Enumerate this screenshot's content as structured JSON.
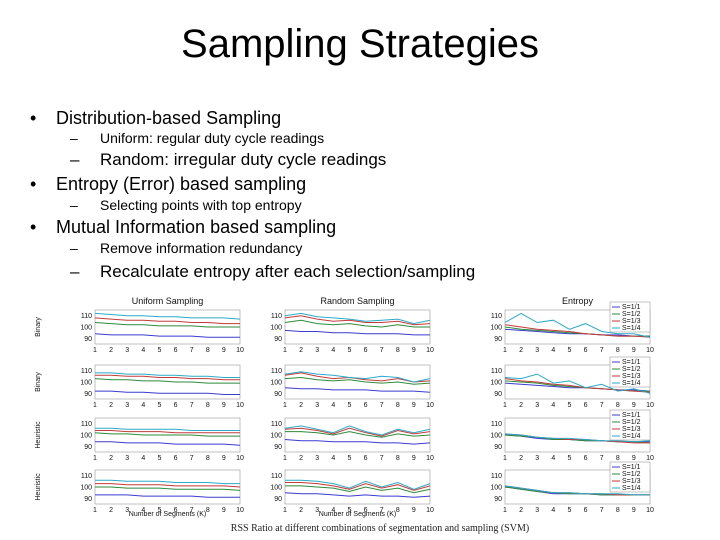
{
  "slide": {
    "title": "Sampling Strategies",
    "bullets": [
      {
        "text": "Distribution-based Sampling",
        "subs": [
          "Uniform: regular duty cycle readings",
          "Random: irregular duty cycle readings"
        ]
      },
      {
        "text": "Entropy (Error) based sampling",
        "subs": [
          "Selecting points with top entropy"
        ]
      },
      {
        "text": "Mutual Information based sampling",
        "subs": [
          "Remove information redundancy",
          "Recalculate entropy after each selection/sampling"
        ]
      }
    ]
  },
  "figure": {
    "caption": "RSS Ratio at different combinations of segmentation and sampling (SVM)",
    "column_titles": [
      "Uniform Sampling",
      "Random Sampling",
      "Entropy"
    ],
    "row_labels": [
      "Binary",
      "Binary",
      "Heuristic",
      "Heuristic"
    ],
    "xlabel": "Number of Segments (K)",
    "legend": [
      "S=1/1",
      "S=1/2",
      "S=1/3",
      "S=1/4"
    ],
    "series_colors": [
      "#3b3bd0",
      "#2e8b3b",
      "#c43a3a",
      "#2aaac8"
    ]
  },
  "chart_data": {
    "type": "line",
    "x": [
      1,
      2,
      3,
      4,
      5,
      6,
      7,
      8,
      9,
      10
    ],
    "ylim": [
      85,
      115
    ],
    "yticks": [
      90,
      100,
      110
    ],
    "panels": [
      {
        "row": "Binary",
        "col": "Uniform Sampling",
        "series": [
          {
            "name": "S=1/1",
            "values": [
              94,
              93,
              93,
              93,
              92,
              92,
              92,
              91,
              91,
              91
            ]
          },
          {
            "name": "S=1/2",
            "values": [
              104,
              103,
              102,
              102,
              101,
              101,
              101,
              100,
              100,
              100
            ]
          },
          {
            "name": "S=1/3",
            "values": [
              108,
              107,
              106,
              106,
              105,
              105,
              104,
              104,
              103,
              103
            ]
          },
          {
            "name": "S=1/4",
            "values": [
              112,
              111,
              110,
              110,
              109,
              109,
              108,
              108,
              108,
              107
            ]
          }
        ]
      },
      {
        "row": "Binary",
        "col": "Random Sampling",
        "series": [
          {
            "name": "S=1/1",
            "values": [
              97,
              96,
              96,
              95,
              95,
              94,
              94,
              94,
              93,
              93
            ]
          },
          {
            "name": "S=1/2",
            "values": [
              104,
              106,
              103,
              102,
              103,
              101,
              100,
              102,
              100,
              100
            ]
          },
          {
            "name": "S=1/3",
            "values": [
              108,
              110,
              107,
              105,
              106,
              104,
              104,
              105,
              102,
              103
            ]
          },
          {
            "name": "S=1/4",
            "values": [
              110,
              112,
              109,
              108,
              107,
              105,
              106,
              107,
              103,
              106
            ]
          }
        ]
      },
      {
        "row": "Binary",
        "col": "Entropy",
        "series": [
          {
            "name": "S=1/1",
            "values": [
              98,
              97,
              96,
              95,
              94,
              94,
              93,
              93,
              92,
              92
            ]
          },
          {
            "name": "S=1/2",
            "values": [
              100,
              98,
              97,
              96,
              95,
              94,
              93,
              92,
              92,
              92
            ]
          },
          {
            "name": "S=1/3",
            "values": [
              102,
              100,
              98,
              97,
              96,
              94,
              93,
              92,
              92,
              91
            ]
          },
          {
            "name": "S=1/4",
            "values": [
              104,
              112,
              104,
              106,
              98,
              103,
              96,
              94,
              94,
              91
            ]
          }
        ]
      },
      {
        "row": "Binary",
        "col": "Uniform Sampling",
        "series": [
          {
            "name": "S=1/1",
            "values": [
              92,
              92,
              91,
              91,
              90,
              90,
              90,
              90,
              89,
              89
            ]
          },
          {
            "name": "S=1/2",
            "values": [
              103,
              102,
              102,
              101,
              101,
              100,
              100,
              99,
              99,
              99
            ]
          },
          {
            "name": "S=1/3",
            "values": [
              106,
              106,
              105,
              105,
              104,
              104,
              103,
              103,
              102,
              102
            ]
          },
          {
            "name": "S=1/4",
            "values": [
              108,
              108,
              107,
              107,
              106,
              106,
              105,
              105,
              104,
              104
            ]
          }
        ]
      },
      {
        "row": "Binary",
        "col": "Random Sampling",
        "series": [
          {
            "name": "S=1/1",
            "values": [
              95,
              94,
              94,
              93,
              93,
              93,
              92,
              92,
              92,
              91
            ]
          },
          {
            "name": "S=1/2",
            "values": [
              103,
              104,
              102,
              101,
              102,
              100,
              99,
              100,
              98,
              99
            ]
          },
          {
            "name": "S=1/3",
            "values": [
              106,
              108,
              105,
              103,
              104,
              102,
              101,
              103,
              100,
              101
            ]
          },
          {
            "name": "S=1/4",
            "values": [
              107,
              109,
              107,
              106,
              104,
              103,
              105,
              104,
              100,
              103
            ]
          }
        ]
      },
      {
        "row": "Binary",
        "col": "Entropy",
        "series": [
          {
            "name": "S=1/1",
            "values": [
              99,
              98,
              97,
              96,
              95,
              95,
              94,
              93,
              93,
              92
            ]
          },
          {
            "name": "S=1/2",
            "values": [
              101,
              100,
              99,
              97,
              96,
              95,
              94,
              93,
              92,
              92
            ]
          },
          {
            "name": "S=1/3",
            "values": [
              103,
              101,
              100,
              98,
              97,
              95,
              94,
              93,
              92,
              91
            ]
          },
          {
            "name": "S=1/4",
            "values": [
              104,
              103,
              107,
              99,
              101,
              95,
              98,
              92,
              94,
              90
            ]
          }
        ]
      },
      {
        "row": "Heuristic",
        "col": "Uniform Sampling",
        "series": [
          {
            "name": "S=1/1",
            "values": [
              94,
              94,
              93,
              93,
              93,
              92,
              92,
              92,
              92,
              91
            ]
          },
          {
            "name": "S=1/2",
            "values": [
              102,
              101,
              101,
              100,
              100,
              100,
              100,
              99,
              99,
              99
            ]
          },
          {
            "name": "S=1/3",
            "values": [
              104,
              104,
              103,
              103,
              103,
              102,
              102,
              102,
              102,
              102
            ]
          },
          {
            "name": "S=1/4",
            "values": [
              106,
              106,
              105,
              105,
              105,
              105,
              104,
              104,
              104,
              104
            ]
          }
        ]
      },
      {
        "row": "Heuristic",
        "col": "Random Sampling",
        "series": [
          {
            "name": "S=1/1",
            "values": [
              96,
              95,
              95,
              94,
              94,
              94,
              93,
              93,
              92,
              93
            ]
          },
          {
            "name": "S=1/2",
            "values": [
              103,
              103,
              102,
              100,
              103,
              100,
              98,
              101,
              99,
              100
            ]
          },
          {
            "name": "S=1/3",
            "values": [
              105,
              106,
              104,
              101,
              106,
              102,
              99,
              104,
              101,
              103
            ]
          },
          {
            "name": "S=1/4",
            "values": [
              106,
              108,
              105,
              102,
              108,
              103,
              100,
              105,
              102,
              105
            ]
          }
        ]
      },
      {
        "row": "Heuristic",
        "col": "Entropy",
        "series": [
          {
            "name": "S=1/1",
            "values": [
              100,
              99,
              97,
              96,
              96,
              95,
              95,
              94,
              94,
              94
            ]
          },
          {
            "name": "S=1/2",
            "values": [
              100,
              99,
              98,
              96,
              96,
              95,
              95,
              94,
              94,
              93
            ]
          },
          {
            "name": "S=1/3",
            "values": [
              101,
              100,
              98,
              97,
              96,
              96,
              95,
              94,
              93,
              93
            ]
          },
          {
            "name": "S=1/4",
            "values": [
              101,
              100,
              98,
              97,
              97,
              96,
              95,
              95,
              94,
              95
            ]
          }
        ]
      },
      {
        "row": "Heuristic",
        "col": "Uniform Sampling",
        "series": [
          {
            "name": "S=1/1",
            "values": [
              93,
              93,
              93,
              92,
              92,
              92,
              92,
              91,
              91,
              91
            ]
          },
          {
            "name": "S=1/2",
            "values": [
              100,
              100,
              99,
              99,
              99,
              98,
              98,
              98,
              98,
              97
            ]
          },
          {
            "name": "S=1/3",
            "values": [
              103,
              103,
              102,
              102,
              102,
              101,
              101,
              101,
              101,
              100
            ]
          },
          {
            "name": "S=1/4",
            "values": [
              106,
              106,
              105,
              105,
              105,
              104,
              104,
              104,
              103,
              103
            ]
          }
        ]
      },
      {
        "row": "Heuristic",
        "col": "Random Sampling",
        "series": [
          {
            "name": "S=1/1",
            "values": [
              95,
              94,
              94,
              93,
              92,
              93,
              92,
              92,
              91,
              92
            ]
          },
          {
            "name": "S=1/2",
            "values": [
              101,
              101,
              100,
              99,
              96,
              100,
              97,
              99,
              95,
              98
            ]
          },
          {
            "name": "S=1/3",
            "values": [
              104,
              104,
              103,
              101,
              98,
              103,
              99,
              102,
              97,
              101
            ]
          },
          {
            "name": "S=1/4",
            "values": [
              106,
              106,
              105,
              103,
              99,
              105,
              100,
              104,
              98,
              103
            ]
          }
        ]
      },
      {
        "row": "Heuristic",
        "col": "Entropy",
        "series": [
          {
            "name": "S=1/1",
            "values": [
              100,
              98,
              96,
              94,
              94,
              94,
              93,
              93,
              93,
              93
            ]
          },
          {
            "name": "S=1/2",
            "values": [
              100,
              98,
              96,
              95,
              94,
              94,
              93,
              93,
              93,
              93
            ]
          },
          {
            "name": "S=1/3",
            "values": [
              101,
              99,
              97,
              95,
              95,
              94,
              94,
              93,
              93,
              93
            ]
          },
          {
            "name": "S=1/4",
            "values": [
              101,
              99,
              97,
              95,
              95,
              94,
              94,
              94,
              93,
              93
            ]
          }
        ]
      }
    ]
  }
}
